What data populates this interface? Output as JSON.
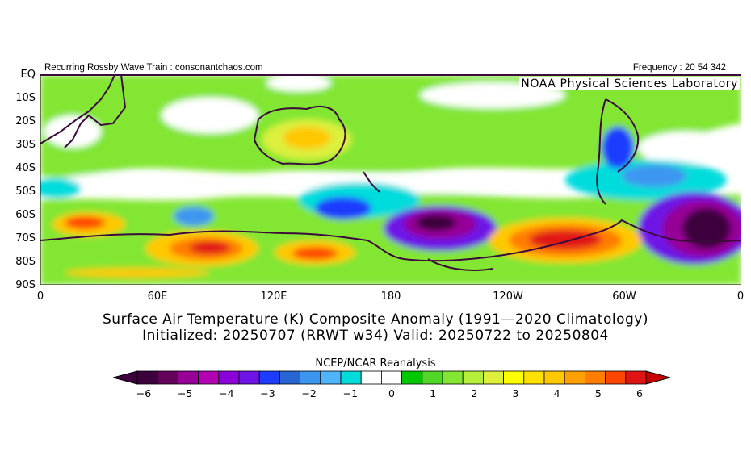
{
  "header": {
    "left": "Recurring Rossby Wave Train : consonantchaos.com",
    "right": "Frequency : 20 54 342",
    "lab": "NOAA Physical Sciences Laboratory"
  },
  "map": {
    "lat_labels": [
      "EQ",
      "10S",
      "20S",
      "30S",
      "40S",
      "50S",
      "60S",
      "70S",
      "80S",
      "90S"
    ],
    "lon_labels": [
      "0",
      "60E",
      "120E",
      "180",
      "120W",
      "60W",
      "0"
    ]
  },
  "titles": {
    "line1": "Surface Air Temperature (K) Composite Anomaly (1991—2020 Climatology)",
    "line2": "Initialized: 20250707 (RRWT w34) Valid: 20250722 to 20250804"
  },
  "colorbar": {
    "title": "NCEP/NCAR Reanalysis",
    "tick_labels": [
      "−6",
      "−5",
      "−4",
      "−3",
      "−2",
      "−1",
      "0",
      "1",
      "2",
      "3",
      "4",
      "5",
      "6"
    ],
    "colors": [
      "#3c003c",
      "#64005a",
      "#960096",
      "#b400b4",
      "#8c00dc",
      "#6e14e6",
      "#1e3cff",
      "#2864d2",
      "#3c96f0",
      "#50b4fa",
      "#00dcdc",
      "#ffffff",
      "#ffffff",
      "#00c800",
      "#50d728",
      "#82e632",
      "#b4f03c",
      "#dcf03c",
      "#ffff00",
      "#ffe100",
      "#ffc800",
      "#ffa000",
      "#ff7d00",
      "#ff4600",
      "#e11414"
    ],
    "low_arrow": "#3c003c",
    "high_arrow": "#c80000"
  }
}
